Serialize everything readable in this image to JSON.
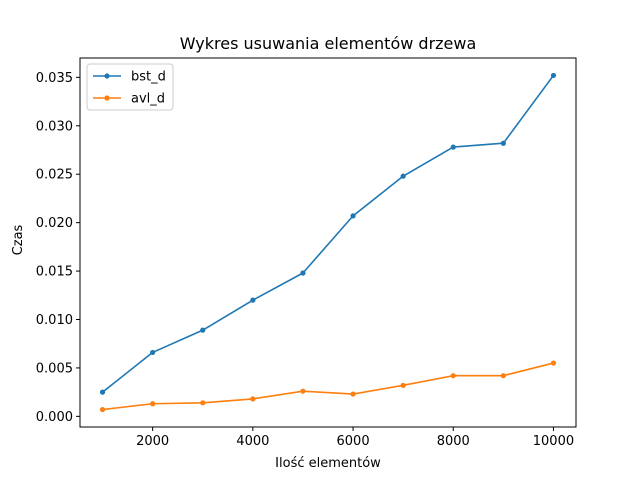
{
  "chart_data": {
    "type": "line",
    "title": "Wykres usuwania elementów drzewa",
    "xlabel": "Ilość elementów",
    "ylabel": "Czas",
    "x": [
      1000,
      2000,
      3000,
      4000,
      5000,
      6000,
      7000,
      8000,
      9000,
      10000
    ],
    "series": [
      {
        "name": "bst_d",
        "color": "#1f77b4",
        "values": [
          0.0025,
          0.0066,
          0.0089,
          0.012,
          0.0148,
          0.0207,
          0.0248,
          0.0278,
          0.0282,
          0.0352
        ]
      },
      {
        "name": "avl_d",
        "color": "#ff7f0e",
        "values": [
          0.0007,
          0.0013,
          0.0014,
          0.0018,
          0.0026,
          0.0023,
          0.0032,
          0.0042,
          0.0042,
          0.0055
        ]
      }
    ],
    "xlim": [
      550,
      10450
    ],
    "ylim": [
      -0.0011,
      0.037
    ],
    "xticks": [
      2000,
      4000,
      6000,
      8000,
      10000
    ],
    "xtick_labels": [
      "2000",
      "4000",
      "6000",
      "8000",
      "10000"
    ],
    "yticks": [
      0.0,
      0.005,
      0.01,
      0.015,
      0.02,
      0.025,
      0.03,
      0.035
    ],
    "ytick_labels": [
      "0.000",
      "0.005",
      "0.010",
      "0.015",
      "0.020",
      "0.025",
      "0.030",
      "0.035"
    ],
    "legend_position": "top-left",
    "grid": false
  }
}
